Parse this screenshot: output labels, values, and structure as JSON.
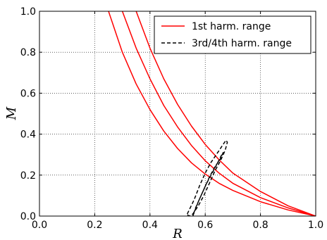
{
  "chart_data": {
    "type": "line",
    "xlabel": "R",
    "ylabel": "M",
    "xlim": [
      0.0,
      1.0
    ],
    "ylim": [
      0.0,
      1.0
    ],
    "xticks": [
      "0.0",
      "0.2",
      "0.4",
      "0.6",
      "0.8",
      "1.0"
    ],
    "yticks": [
      "0.0",
      "0.2",
      "0.4",
      "0.6",
      "0.8",
      "1.0"
    ],
    "grid": true,
    "legend_position": "top-right",
    "series": [
      {
        "name": "1st harm. range",
        "color": "#ff0000",
        "style": "solid",
        "curves": [
          {
            "x": [
              0.25,
              0.3,
              0.35,
              0.4,
              0.45,
              0.5,
              0.55,
              0.6,
              0.65,
              0.7,
              0.8,
              0.9,
              1.0
            ],
            "y": [
              1.0,
              0.8,
              0.645,
              0.52,
              0.415,
              0.33,
              0.26,
              0.205,
              0.16,
              0.125,
              0.07,
              0.03,
              0.0
            ]
          },
          {
            "x": [
              0.3,
              0.35,
              0.4,
              0.45,
              0.5,
              0.55,
              0.6,
              0.65,
              0.7,
              0.8,
              0.9,
              1.0
            ],
            "y": [
              1.0,
              0.82,
              0.67,
              0.54,
              0.435,
              0.345,
              0.27,
              0.21,
              0.16,
              0.09,
              0.04,
              0.0
            ]
          },
          {
            "x": [
              0.35,
              0.4,
              0.45,
              0.5,
              0.55,
              0.6,
              0.65,
              0.7,
              0.8,
              0.9,
              1.0
            ],
            "y": [
              1.0,
              0.82,
              0.67,
              0.545,
              0.44,
              0.35,
              0.275,
              0.21,
              0.12,
              0.05,
              0.0
            ]
          }
        ]
      },
      {
        "name": "3rd/4th harm. range",
        "color": "#000000",
        "style": "dashed",
        "curves": [
          {
            "x": [
              0.535,
              0.56,
              0.58,
              0.6,
              0.62,
              0.64,
              0.66,
              0.675,
              0.68,
              0.672,
              0.655,
              0.635,
              0.615,
              0.595,
              0.575,
              0.555,
              0.54,
              0.535
            ],
            "y": [
              0.01,
              0.08,
              0.15,
              0.21,
              0.26,
              0.3,
              0.34,
              0.37,
              0.36,
              0.32,
              0.27,
              0.22,
              0.16,
              0.1,
              0.05,
              0.01,
              0.0,
              0.01
            ]
          },
          {
            "x": [
              0.555,
              0.575,
              0.595,
              0.615,
              0.635,
              0.655,
              0.665,
              0.66,
              0.645,
              0.625,
              0.605,
              0.585,
              0.565,
              0.555
            ],
            "y": [
              0.0,
              0.07,
              0.13,
              0.19,
              0.24,
              0.28,
              0.31,
              0.3,
              0.26,
              0.21,
              0.16,
              0.1,
              0.04,
              0.0
            ]
          }
        ]
      }
    ]
  }
}
